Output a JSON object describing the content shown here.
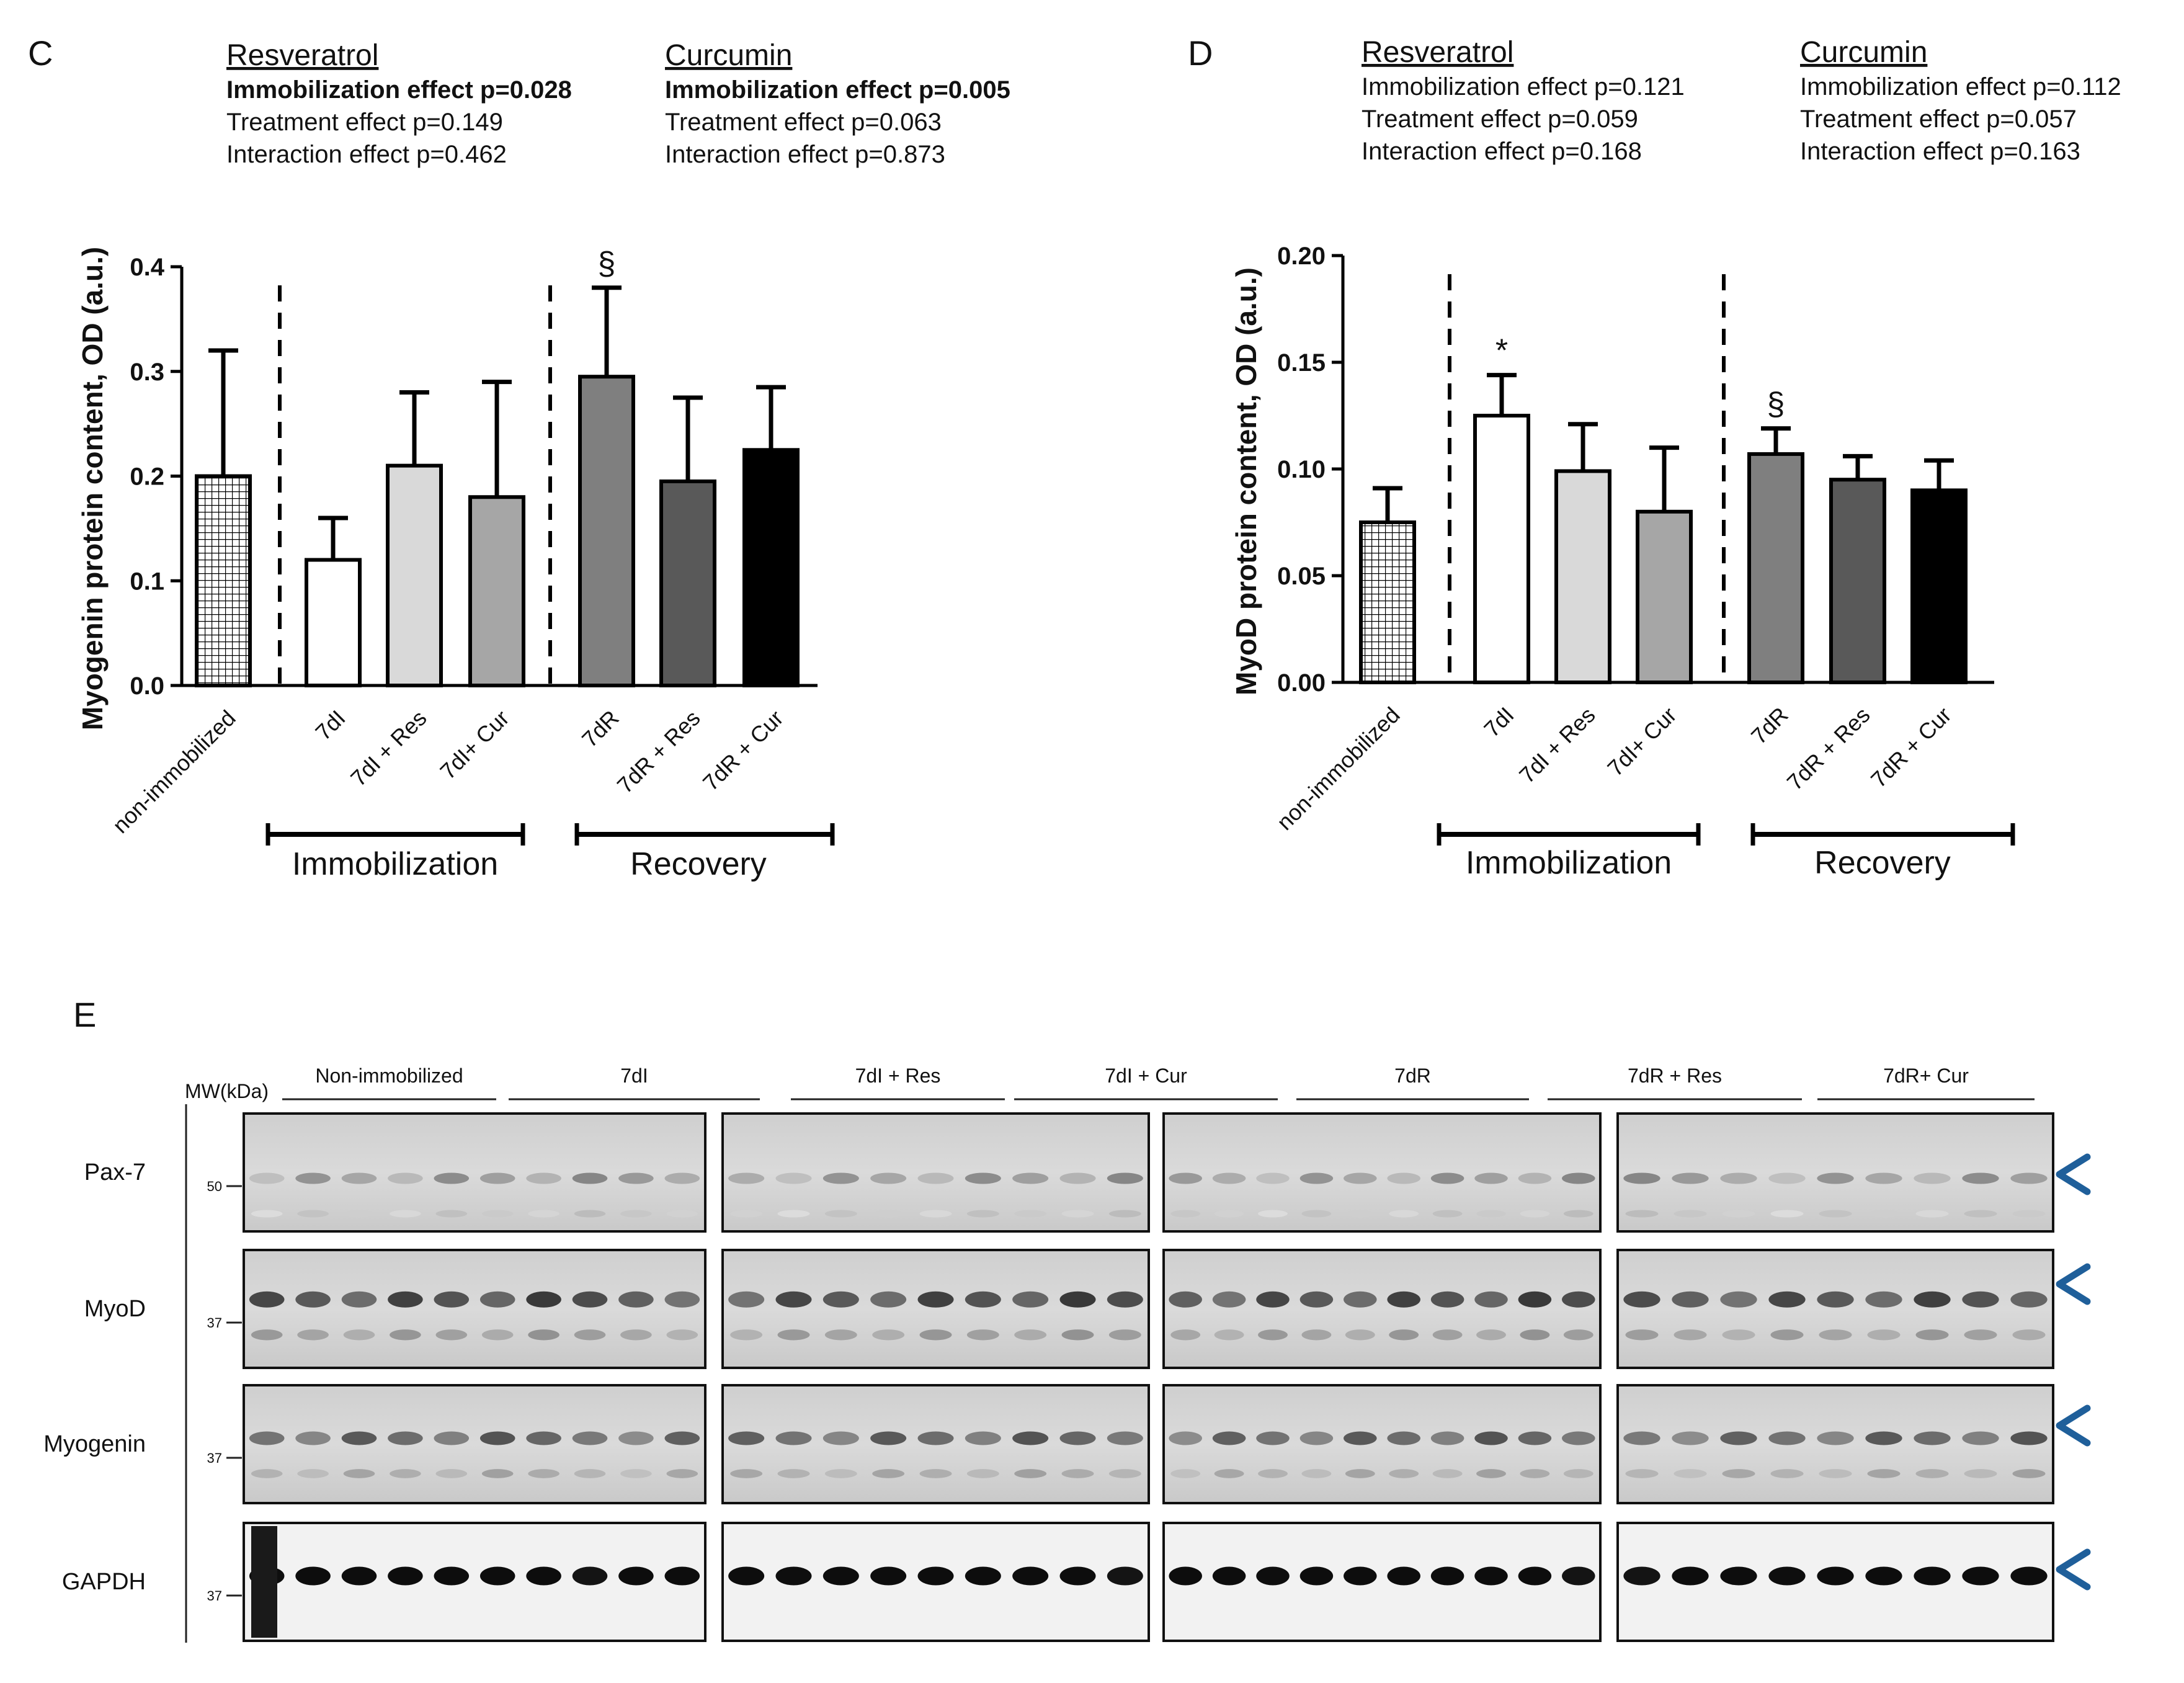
{
  "figure": {
    "panel_c": {
      "letter": "C",
      "stats": [
        {
          "drug": "Resveratrol",
          "lines": [
            "Immobilization effect p=0.028",
            "Treatment effect p=0.149",
            "Interaction effect p=0.462"
          ],
          "bold_first": true
        },
        {
          "drug": "Curcumin",
          "lines": [
            "Immobilization effect p=0.005",
            "Treatment effect p=0.063",
            "Interaction effect p=0.873"
          ],
          "bold_first": true
        }
      ]
    },
    "panel_d": {
      "letter": "D",
      "stats": [
        {
          "drug": "Resveratrol",
          "lines": [
            "Immobilization effect p=0.121",
            "Treatment effect p=0.059",
            "Interaction effect p=0.168"
          ],
          "bold_first": false
        },
        {
          "drug": "Curcumin",
          "lines": [
            "Immobilization effect p=0.112",
            "Treatment effect p=0.057",
            "Interaction effect p=0.163"
          ],
          "bold_first": false
        }
      ]
    },
    "panel_e": {
      "letter": "E",
      "mw_label": "MW(kDa)",
      "groups": [
        "Non-immobilized",
        "7dI",
        "7dI + Res",
        "7dI + Cur",
        "7dR",
        "7dR + Res",
        "7dR+ Cur"
      ],
      "blots": [
        {
          "name": "Pax-7",
          "mw": "50"
        },
        {
          "name": "MyoD",
          "mw": "37"
        },
        {
          "name": "Myogenin",
          "mw": "37"
        },
        {
          "name": "GAPDH",
          "mw": "37"
        }
      ],
      "arrow_color": "#1f5f9a"
    }
  },
  "chart_data": [
    {
      "type": "bar",
      "panel": "C",
      "ylabel": "Myogenin protein content, OD (a.u.)",
      "ylim": [
        0,
        0.4
      ],
      "yticks": [
        "0.0",
        "0.1",
        "0.2",
        "0.3",
        "0.4"
      ],
      "categories": [
        "non-immobilized",
        "7dI",
        "7dI + Res",
        "7dI+ Cur",
        "7dR",
        "7dR + Res",
        "7dR + Cur"
      ],
      "values": [
        0.2,
        0.12,
        0.21,
        0.18,
        0.295,
        0.195,
        0.225
      ],
      "errors": [
        0.12,
        0.04,
        0.07,
        0.11,
        0.085,
        0.08,
        0.06
      ],
      "fills": [
        "hatch",
        "#ffffff",
        "#d9d9d9",
        "#a6a6a6",
        "#7f7f7f",
        "#595959",
        "#000000"
      ],
      "markers": [
        "",
        "",
        "",
        "",
        "§",
        "",
        ""
      ],
      "group_labels": [
        "Immobilization",
        "Recovery"
      ]
    },
    {
      "type": "bar",
      "panel": "D",
      "ylabel": "MyoD protein content, OD (a.u.)",
      "ylim": [
        0,
        0.2
      ],
      "yticks": [
        "0.00",
        "0.05",
        "0.10",
        "0.15",
        "0.20"
      ],
      "categories": [
        "non-immobilized",
        "7dI",
        "7dI + Res",
        "7dI+ Cur",
        "7dR",
        "7dR + Res",
        "7dR + Cur"
      ],
      "values": [
        0.075,
        0.125,
        0.099,
        0.08,
        0.107,
        0.095,
        0.09
      ],
      "errors": [
        0.016,
        0.019,
        0.022,
        0.03,
        0.012,
        0.011,
        0.014
      ],
      "fills": [
        "hatch",
        "#ffffff",
        "#d9d9d9",
        "#a6a6a6",
        "#7f7f7f",
        "#595959",
        "#000000"
      ],
      "markers": [
        "",
        "*",
        "",
        "",
        "§",
        "",
        ""
      ],
      "group_labels": [
        "Immobilization",
        "Recovery"
      ]
    }
  ]
}
